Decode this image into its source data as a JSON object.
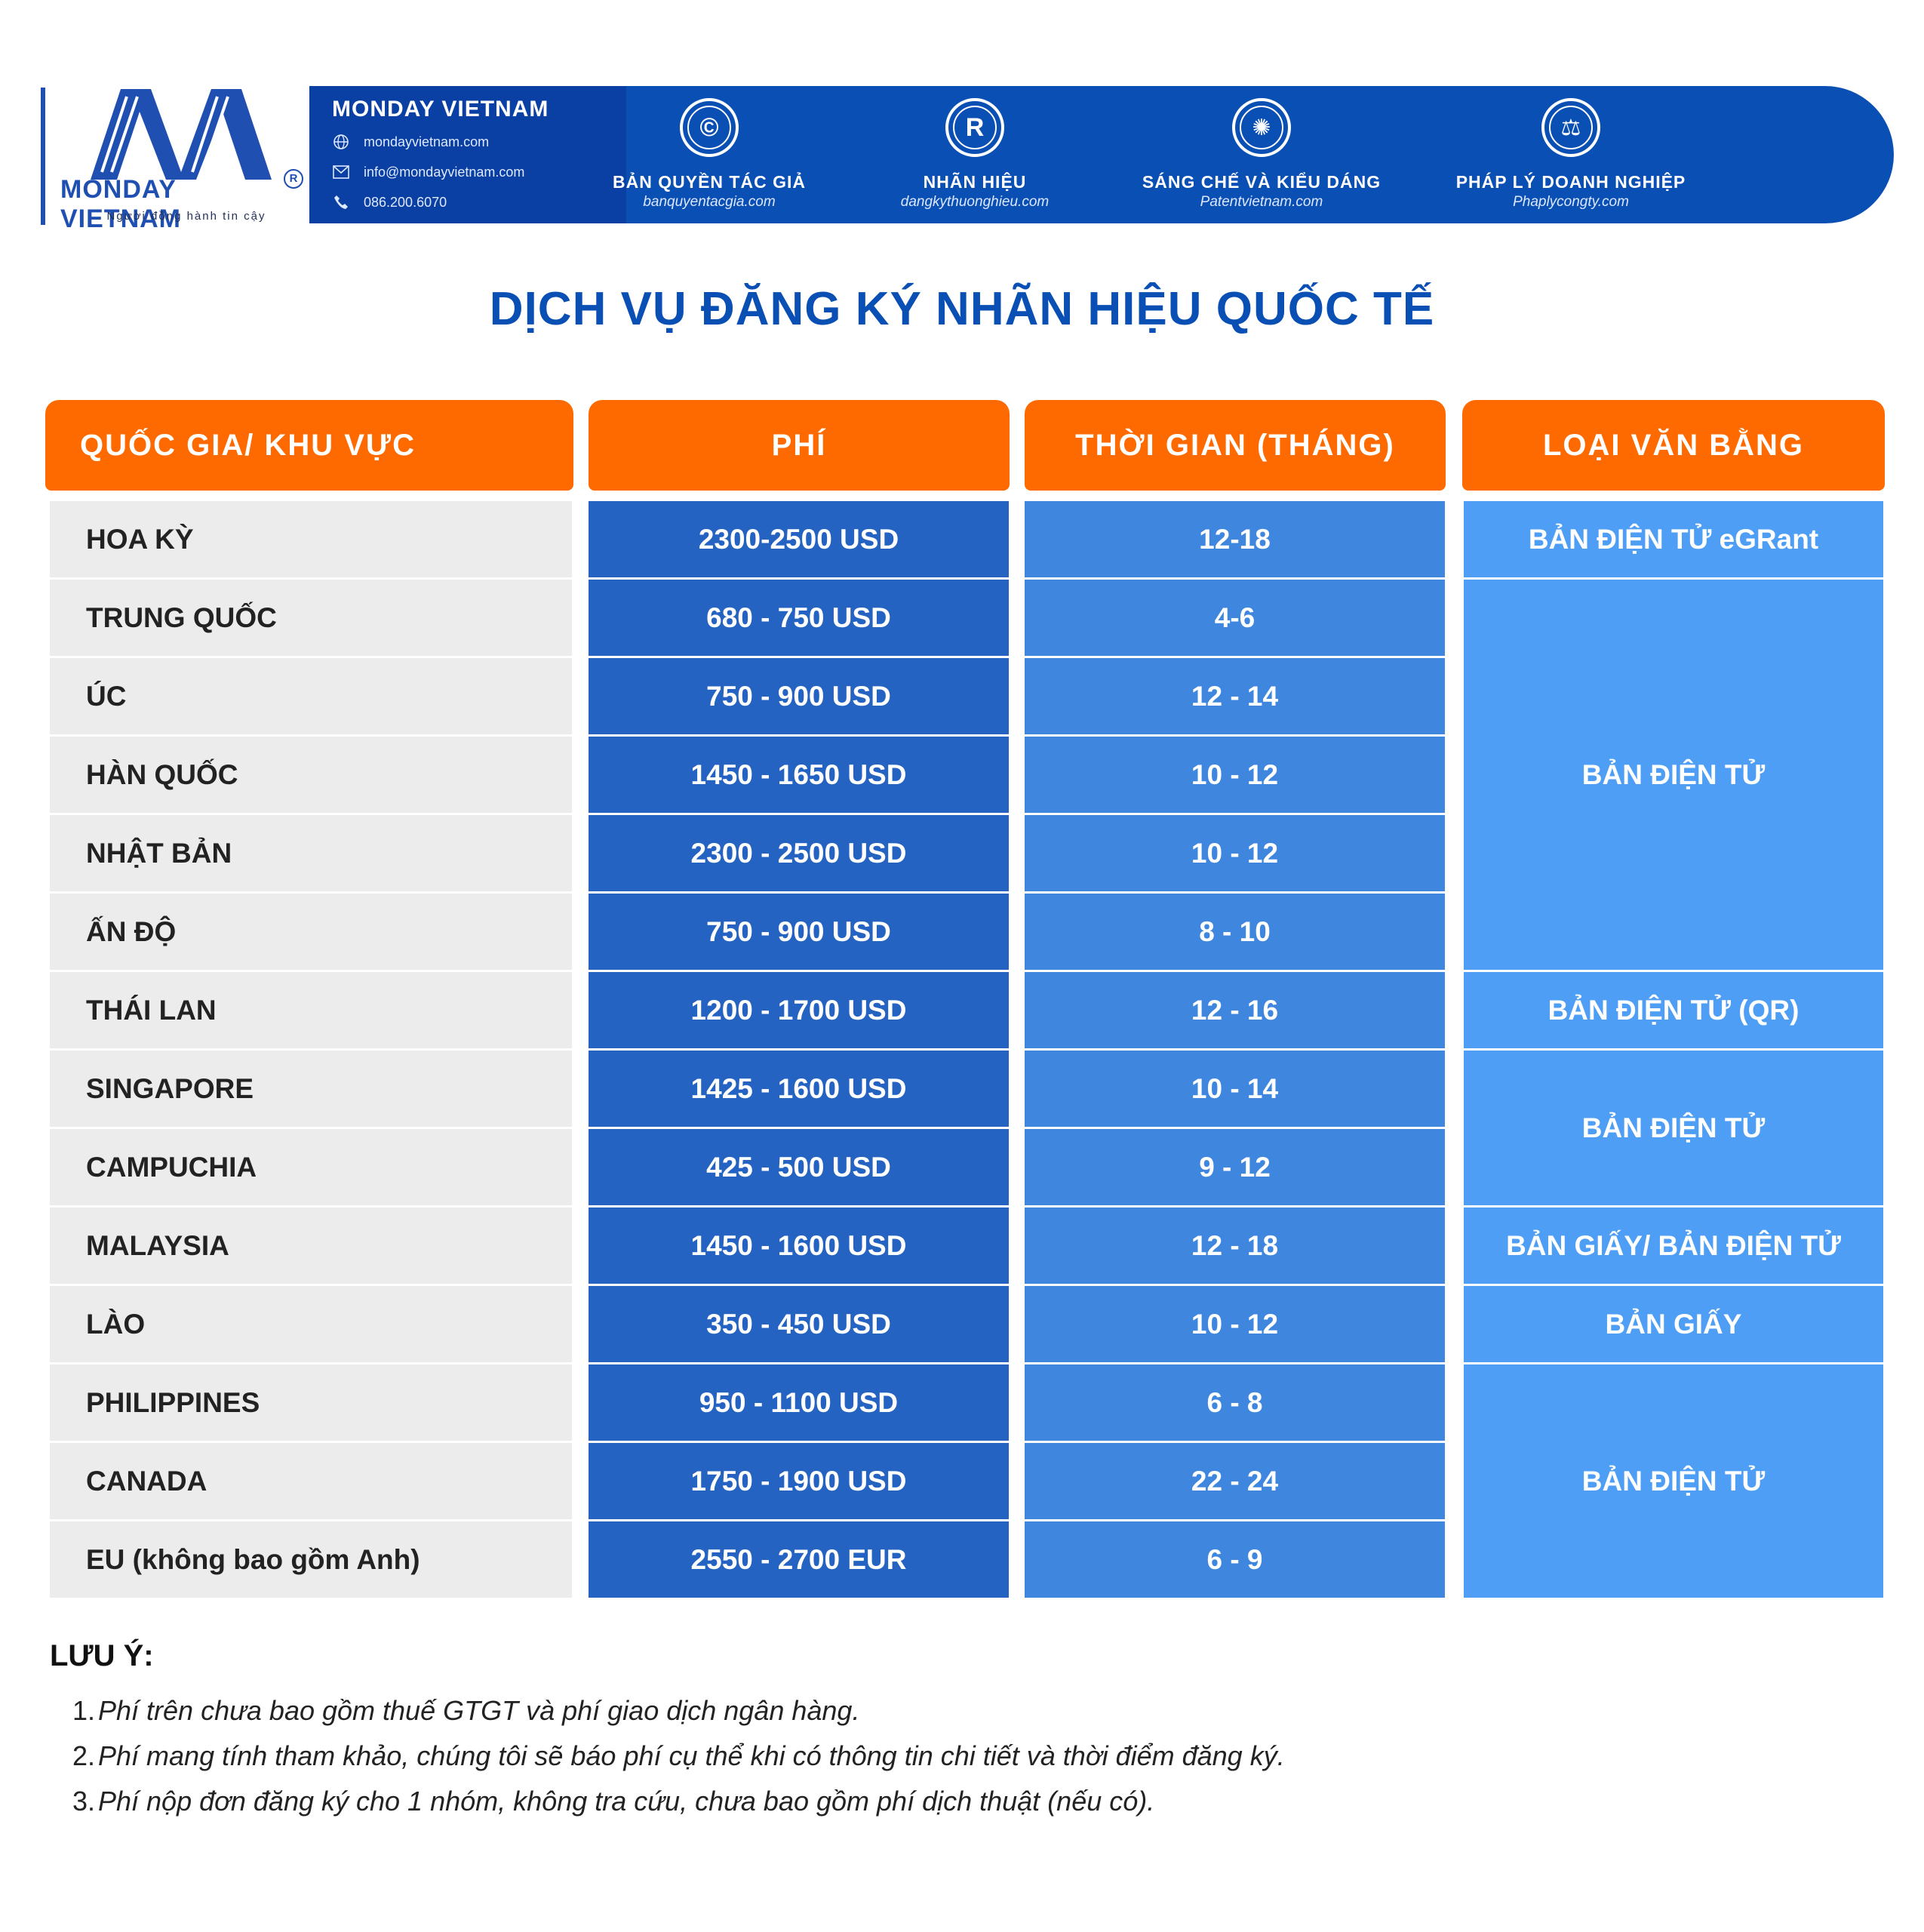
{
  "brand": {
    "logo_name": "MONDAY VIETNAM",
    "logo_tagline": "Người đồng hành tin cậy",
    "banner_title": "MONDAY VIETNAM",
    "website": "mondayvietnam.com",
    "email": "info@mondayvietnam.com",
    "phone": "086.200.6070"
  },
  "services": [
    {
      "name": "BẢN QUYỀN TÁC GIẢ",
      "url": "banquyentacgia.com",
      "icon": "copyright-icon"
    },
    {
      "name": "NHÃN HIỆU",
      "url": "dangkythuonghieu.com",
      "icon": "registered-icon"
    },
    {
      "name": "SÁNG CHẾ VÀ KIỂU DÁNG",
      "url": "Patentvietnam.com",
      "icon": "lightbulb-icon"
    },
    {
      "name": "PHÁP LÝ DOANH NGHIỆP",
      "url": "Phaplycongty.com",
      "icon": "scales-icon"
    }
  ],
  "title": "DỊCH VỤ ĐĂNG KÝ NHÃN HIỆU QUỐC TẾ",
  "table": {
    "headers": [
      "QUỐC GIA/ KHU VỰC",
      "PHÍ",
      "THỜI GIAN (THÁNG)",
      "LOẠI VĂN BẰNG"
    ],
    "rows": [
      {
        "country": "HOA KỲ",
        "fee": "2300-2500 USD",
        "time": "12-18"
      },
      {
        "country": "TRUNG QUỐC",
        "fee": "680 - 750 USD",
        "time": "4-6"
      },
      {
        "country": "ÚC",
        "fee": "750 - 900 USD",
        "time": "12 - 14"
      },
      {
        "country": "HÀN QUỐC",
        "fee": "1450 - 1650 USD",
        "time": "10 - 12"
      },
      {
        "country": "NHẬT BẢN",
        "fee": "2300 - 2500 USD",
        "time": "10 - 12"
      },
      {
        "country": "ẤN ĐỘ",
        "fee": "750 - 900 USD",
        "time": "8 - 10"
      },
      {
        "country": "THÁI LAN",
        "fee": "1200 - 1700 USD",
        "time": "12 - 16"
      },
      {
        "country": "SINGAPORE",
        "fee": "1425 - 1600 USD",
        "time": "10 - 14"
      },
      {
        "country": "CAMPUCHIA",
        "fee": "425 - 500 USD",
        "time": "9 - 12"
      },
      {
        "country": "MALAYSIA",
        "fee": "1450 - 1600 USD",
        "time": "12 - 18"
      },
      {
        "country": "LÀO",
        "fee": "350 - 450 USD",
        "time": "10 - 12"
      },
      {
        "country": "PHILIPPINES",
        "fee": "950 - 1100 USD",
        "time": "6 - 8"
      },
      {
        "country": "CANADA",
        "fee": "1750 - 1900 USD",
        "time": "22 - 24"
      },
      {
        "country": "EU (không bao gồm Anh)",
        "fee": "2550 - 2700 EUR",
        "time": "6 - 9"
      }
    ],
    "certificate_types": [
      {
        "label": "BẢN ĐIỆN TỬ  eGRant",
        "rows": "1"
      },
      {
        "label": "BẢN ĐIỆN TỬ",
        "rows": "2-6"
      },
      {
        "label": "BẢN ĐIỆN TỬ (QR)",
        "rows": "7"
      },
      {
        "label": "BẢN ĐIỆN TỬ",
        "rows": "8-9"
      },
      {
        "label": "BẢN GIẤY/ BẢN ĐIỆN TỬ",
        "rows": "10"
      },
      {
        "label": "BẢN GIẤY",
        "rows": "11"
      },
      {
        "label": "BẢN ĐIỆN TỬ",
        "rows": "12-14"
      }
    ]
  },
  "notes": {
    "title": "LƯU Ý:",
    "items": [
      "Phí trên chưa bao gồm thuế GTGT và phí giao dịch ngân hàng.",
      "Phí mang tính tham khảo, chúng tôi sẽ báo phí cụ thể khi có thông tin chi tiết và thời điểm đăng ký.",
      "Phí nộp đơn đăng ký cho 1 nhóm, không tra cứu, chưa bao gồm phí dịch thuật (nếu có)."
    ]
  },
  "colors": {
    "brand_blue": "#0a4fb4",
    "header_orange": "#ff6a00",
    "fee_column": "#2563c2",
    "time_column": "#3f86de",
    "type_column": "#4d9ef4",
    "country_column": "#ececec"
  }
}
